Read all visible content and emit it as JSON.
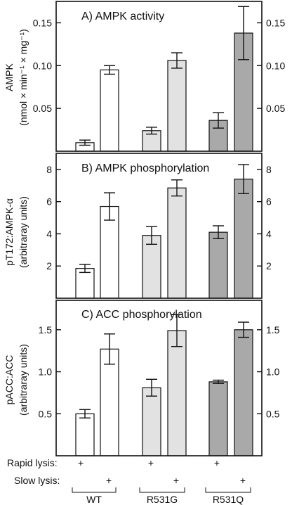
{
  "colors": {
    "white": "#ffffff",
    "light": "#e2e2e2",
    "dark": "#a9a9a9",
    "stroke": "#111111"
  },
  "chart_data": [
    {
      "type": "bar",
      "title": "A) AMPK activity",
      "ylabel_line1": "AMPK",
      "ylabel_line2": "(nmol × min⁻¹ × mg⁻¹)",
      "ylim": [
        0,
        0.175
      ],
      "yticks": [
        0.05,
        0.1,
        0.15
      ],
      "ytick_labels": [
        "0.05",
        "0.10",
        "0.15"
      ],
      "categories": [
        "WT rapid",
        "WT slow",
        "R531G rapid",
        "R531G slow",
        "R531Q rapid",
        "R531Q slow"
      ],
      "values": [
        0.01,
        0.095,
        0.024,
        0.106,
        0.036,
        0.138
      ],
      "errors": [
        0.003,
        0.005,
        0.004,
        0.009,
        0.009,
        0.031
      ]
    },
    {
      "type": "bar",
      "title": "B) AMPK phosphorylation",
      "ylabel_line1": "pT172:AMPK-α",
      "ylabel_line2": "(arbitraray units)",
      "ylim": [
        0,
        9.0
      ],
      "yticks": [
        2,
        4,
        6,
        8
      ],
      "ytick_labels": [
        "2",
        "4",
        "6",
        "8"
      ],
      "categories": [
        "WT rapid",
        "WT slow",
        "R531G rapid",
        "R531G slow",
        "R531Q rapid",
        "R531Q slow"
      ],
      "values": [
        1.85,
        5.7,
        3.9,
        6.85,
        4.1,
        7.4
      ],
      "errors": [
        0.25,
        0.85,
        0.55,
        0.5,
        0.4,
        0.9
      ]
    },
    {
      "type": "bar",
      "title": "C) ACC phosphorylation",
      "ylabel_line1": "pACC:ACC",
      "ylabel_line2": "(arbitraray units)",
      "ylim": [
        0,
        1.85
      ],
      "yticks": [
        0.5,
        1.0,
        1.5
      ],
      "ytick_labels": [
        "0.5",
        "1.0",
        "1.5"
      ],
      "categories": [
        "WT rapid",
        "WT slow",
        "R531G rapid",
        "R531G slow",
        "R531Q rapid",
        "R531Q slow"
      ],
      "values": [
        0.5,
        1.27,
        0.81,
        1.49,
        0.88,
        1.5
      ],
      "errors": [
        0.05,
        0.18,
        0.1,
        0.19,
        0.02,
        0.09
      ]
    }
  ],
  "conditions": {
    "rapid_label": "Rapid lysis:",
    "slow_label": "Slow lysis:",
    "mark": "+"
  },
  "groups": [
    "WT",
    "R531G",
    "R531Q"
  ]
}
